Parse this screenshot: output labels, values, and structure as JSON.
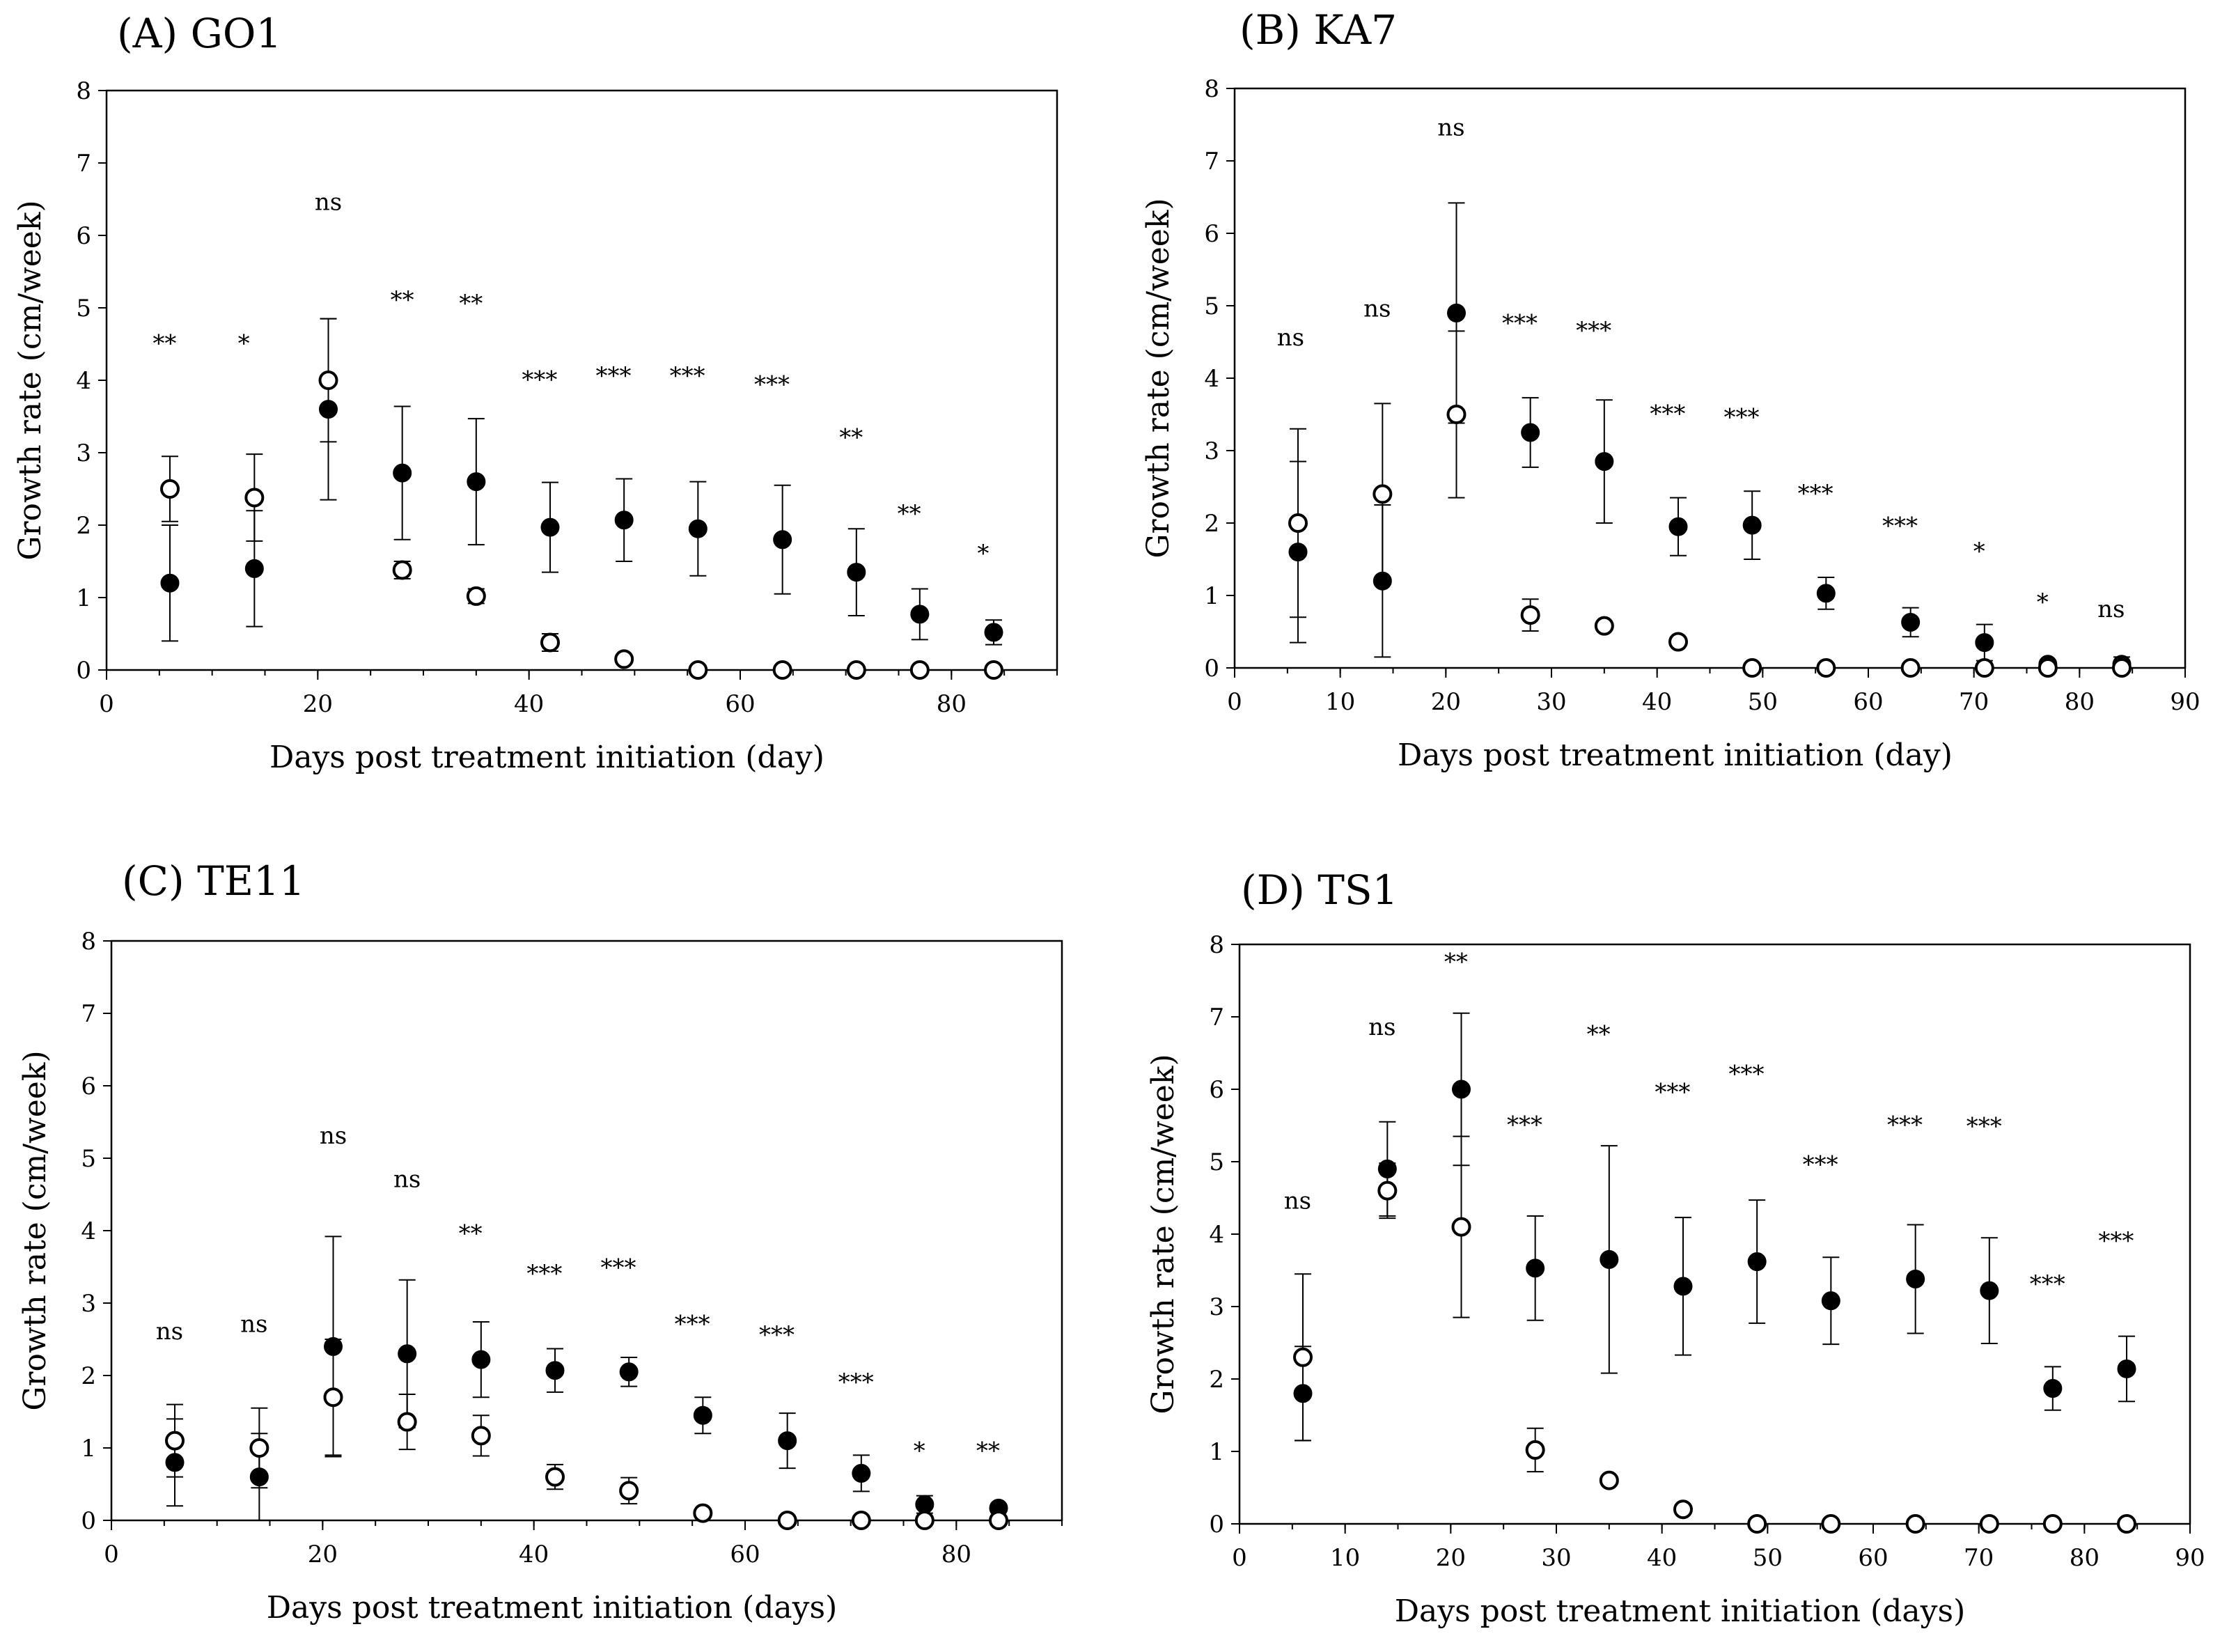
{
  "chart_data": [
    {
      "type": "scatter",
      "title": "(A) GO1",
      "xlabel": "Days post treatment initiation (day)",
      "ylabel": "Growth rate (cm/week)",
      "xlim": [
        0,
        90
      ],
      "ylim": [
        0,
        8
      ],
      "xticks": [
        "0",
        "20",
        "40",
        "60",
        "80"
      ],
      "yticks": [
        "0",
        "1",
        "2",
        "3",
        "4",
        "5",
        "6",
        "7",
        "8"
      ],
      "series": [
        {
          "name": "filled",
          "marker": "filled-circle",
          "x": [
            6,
            14,
            21,
            28,
            35,
            42,
            49,
            56,
            64,
            71,
            77,
            84
          ],
          "y": [
            1.2,
            1.4,
            3.6,
            2.72,
            2.6,
            1.97,
            2.07,
            1.95,
            1.8,
            1.35,
            0.77,
            0.52
          ],
          "err": [
            0.8,
            0.8,
            1.25,
            0.92,
            0.87,
            0.62,
            0.57,
            0.65,
            0.75,
            0.6,
            0.35,
            0.17
          ]
        },
        {
          "name": "open",
          "marker": "open-circle",
          "x": [
            6,
            14,
            21,
            28,
            35,
            42,
            49,
            56,
            64,
            71,
            77,
            84
          ],
          "y": [
            2.5,
            2.38,
            4.0,
            1.38,
            1.02,
            0.38,
            0.15,
            0.0,
            0.0,
            0.0,
            0.0,
            0.0
          ],
          "err": [
            0.45,
            0.6,
            0.85,
            0.12,
            0.1,
            0.12,
            0.05,
            0,
            0,
            0,
            0,
            0
          ]
        }
      ],
      "annotations": [
        {
          "text": "**",
          "x": 5.5,
          "y": 4.4
        },
        {
          "text": "*",
          "x": 13,
          "y": 4.4
        },
        {
          "text": "ns",
          "x": 21,
          "y": 6.35
        },
        {
          "text": "**",
          "x": 28,
          "y": 5.0
        },
        {
          "text": "**",
          "x": 34.5,
          "y": 4.95
        },
        {
          "text": "***",
          "x": 41,
          "y": 3.9
        },
        {
          "text": "***",
          "x": 48,
          "y": 3.95
        },
        {
          "text": "***",
          "x": 55,
          "y": 3.95
        },
        {
          "text": "***",
          "x": 63,
          "y": 3.83
        },
        {
          "text": "**",
          "x": 70.5,
          "y": 3.1
        },
        {
          "text": "**",
          "x": 76,
          "y": 2.05
        },
        {
          "text": "*",
          "x": 83,
          "y": 1.5
        }
      ]
    },
    {
      "type": "scatter",
      "title": "(B) KA7",
      "xlabel": "Days post treatment initiation (day)",
      "ylabel": "Growth rate (cm/week)",
      "xlim": [
        0,
        90
      ],
      "ylim": [
        0,
        8
      ],
      "xticks": [
        "0",
        "10",
        "20",
        "30",
        "40",
        "50",
        "60",
        "70",
        "80",
        "90"
      ],
      "yticks": [
        "0",
        "1",
        "2",
        "3",
        "4",
        "5",
        "6",
        "7",
        "8"
      ],
      "series": [
        {
          "name": "filled",
          "marker": "filled-circle",
          "x": [
            6,
            14,
            21,
            28,
            35,
            42,
            49,
            56,
            64,
            71,
            77,
            84
          ],
          "y": [
            1.6,
            1.2,
            4.9,
            3.25,
            2.85,
            1.95,
            1.97,
            1.03,
            0.63,
            0.35,
            0.05,
            0.05
          ],
          "err": [
            1.25,
            1.05,
            1.52,
            0.48,
            0.85,
            0.4,
            0.47,
            0.22,
            0.2,
            0.25,
            0.05,
            0.1
          ]
        },
        {
          "name": "open",
          "marker": "open-circle",
          "x": [
            6,
            14,
            21,
            28,
            35,
            42,
            49,
            56,
            64,
            71,
            77,
            84
          ],
          "y": [
            2.0,
            2.4,
            3.5,
            0.73,
            0.58,
            0.36,
            0.0,
            0.0,
            0.0,
            0.0,
            0.0,
            0.0
          ],
          "err": [
            1.3,
            1.25,
            1.15,
            0.22,
            0.05,
            0.05,
            0,
            0,
            0,
            0,
            0,
            0
          ]
        }
      ],
      "annotations": [
        {
          "text": "ns",
          "x": 5.3,
          "y": 4.45
        },
        {
          "text": "ns",
          "x": 13.5,
          "y": 4.85
        },
        {
          "text": "ns",
          "x": 20.5,
          "y": 7.35
        },
        {
          "text": "***",
          "x": 27,
          "y": 4.65
        },
        {
          "text": "***",
          "x": 34,
          "y": 4.55
        },
        {
          "text": "***",
          "x": 41,
          "y": 3.4
        },
        {
          "text": "***",
          "x": 48,
          "y": 3.35
        },
        {
          "text": "***",
          "x": 55,
          "y": 2.3
        },
        {
          "text": "***",
          "x": 63,
          "y": 1.85
        },
        {
          "text": "*",
          "x": 70.5,
          "y": 1.5
        },
        {
          "text": "*",
          "x": 76.5,
          "y": 0.8
        },
        {
          "text": "ns",
          "x": 83,
          "y": 0.7
        }
      ]
    },
    {
      "type": "scatter",
      "title": "(C) TE11",
      "xlabel": "Days post treatment initiation (days)",
      "ylabel": "Growth rate (cm/week)",
      "xlim": [
        0,
        90
      ],
      "ylim": [
        0,
        8
      ],
      "xticks": [
        "0",
        "20",
        "40",
        "60",
        "80"
      ],
      "yticks": [
        "0",
        "1",
        "2",
        "3",
        "4",
        "5",
        "6",
        "7",
        "8"
      ],
      "series": [
        {
          "name": "filled",
          "marker": "filled-circle",
          "x": [
            6,
            14,
            21,
            28,
            35,
            42,
            49,
            56,
            64,
            71,
            77,
            84
          ],
          "y": [
            0.8,
            0.6,
            2.4,
            2.3,
            2.22,
            2.07,
            2.05,
            1.45,
            1.1,
            0.65,
            0.22,
            0.17
          ],
          "err": [
            0.6,
            0.6,
            1.52,
            1.02,
            0.52,
            0.3,
            0.2,
            0.25,
            0.38,
            0.25,
            0.12,
            0.05
          ]
        },
        {
          "name": "open",
          "marker": "open-circle",
          "x": [
            6,
            14,
            21,
            28,
            35,
            42,
            49,
            56,
            64,
            71,
            77,
            84
          ],
          "y": [
            1.1,
            1.0,
            1.7,
            1.36,
            1.17,
            0.6,
            0.41,
            0.1,
            0.0,
            0.0,
            0.0,
            0.0
          ],
          "err": [
            0.5,
            0.55,
            0.8,
            0.38,
            0.28,
            0.17,
            0.18,
            0.05,
            0,
            0,
            0,
            0
          ]
        }
      ],
      "annotations": [
        {
          "text": "ns",
          "x": 5.5,
          "y": 2.5
        },
        {
          "text": "ns",
          "x": 13.5,
          "y": 2.6
        },
        {
          "text": "ns",
          "x": 21,
          "y": 5.2
        },
        {
          "text": "ns",
          "x": 28,
          "y": 4.6
        },
        {
          "text": "**",
          "x": 34,
          "y": 3.85
        },
        {
          "text": "***",
          "x": 41,
          "y": 3.3
        },
        {
          "text": "***",
          "x": 48,
          "y": 3.38
        },
        {
          "text": "***",
          "x": 55,
          "y": 2.6
        },
        {
          "text": "***",
          "x": 63,
          "y": 2.45
        },
        {
          "text": "***",
          "x": 70.5,
          "y": 1.8
        },
        {
          "text": "*",
          "x": 76.5,
          "y": 0.85
        },
        {
          "text": "**",
          "x": 83,
          "y": 0.85
        }
      ]
    },
    {
      "type": "scatter",
      "title": "(D) TS1",
      "xlabel": "Days post treatment initiation (days)",
      "ylabel": "Growth rate (cm/week)",
      "xlim": [
        0,
        90
      ],
      "ylim": [
        0,
        8
      ],
      "xticks": [
        "0",
        "10",
        "20",
        "30",
        "40",
        "50",
        "60",
        "70",
        "80",
        "90"
      ],
      "yticks": [
        "0",
        "1",
        "2",
        "3",
        "4",
        "5",
        "6",
        "7",
        "8"
      ],
      "series": [
        {
          "name": "filled",
          "marker": "filled-circle",
          "x": [
            6,
            14,
            21,
            28,
            35,
            42,
            49,
            56,
            64,
            71,
            77,
            84
          ],
          "y": [
            1.8,
            4.9,
            6.0,
            3.53,
            3.65,
            3.28,
            3.62,
            3.08,
            3.38,
            3.22,
            1.87,
            2.14
          ],
          "err": [
            0.65,
            0.65,
            1.05,
            0.72,
            1.57,
            0.95,
            0.85,
            0.6,
            0.75,
            0.73,
            0.3,
            0.45
          ]
        },
        {
          "name": "open",
          "marker": "open-circle",
          "x": [
            6,
            14,
            21,
            28,
            35,
            42,
            49,
            56,
            64,
            71,
            77,
            84
          ],
          "y": [
            2.3,
            4.6,
            4.1,
            1.02,
            0.6,
            0.2,
            0.0,
            0.0,
            0.0,
            0.0,
            0.0,
            0.0
          ],
          "err": [
            1.15,
            0.38,
            1.25,
            0.3,
            0.05,
            0.05,
            0,
            0,
            0,
            0,
            0,
            0
          ]
        }
      ],
      "annotations": [
        {
          "text": "ns",
          "x": 5.5,
          "y": 4.35
        },
        {
          "text": "ns",
          "x": 13.5,
          "y": 6.75
        },
        {
          "text": "**",
          "x": 20.5,
          "y": 7.65
        },
        {
          "text": "***",
          "x": 27,
          "y": 5.4
        },
        {
          "text": "**",
          "x": 34,
          "y": 6.65
        },
        {
          "text": "***",
          "x": 41,
          "y": 5.85
        },
        {
          "text": "***",
          "x": 48,
          "y": 6.1
        },
        {
          "text": "***",
          "x": 55,
          "y": 4.85
        },
        {
          "text": "***",
          "x": 63,
          "y": 5.4
        },
        {
          "text": "***",
          "x": 70.5,
          "y": 5.38
        },
        {
          "text": "***",
          "x": 76.5,
          "y": 3.2
        },
        {
          "text": "***",
          "x": 83,
          "y": 3.8
        }
      ]
    }
  ]
}
